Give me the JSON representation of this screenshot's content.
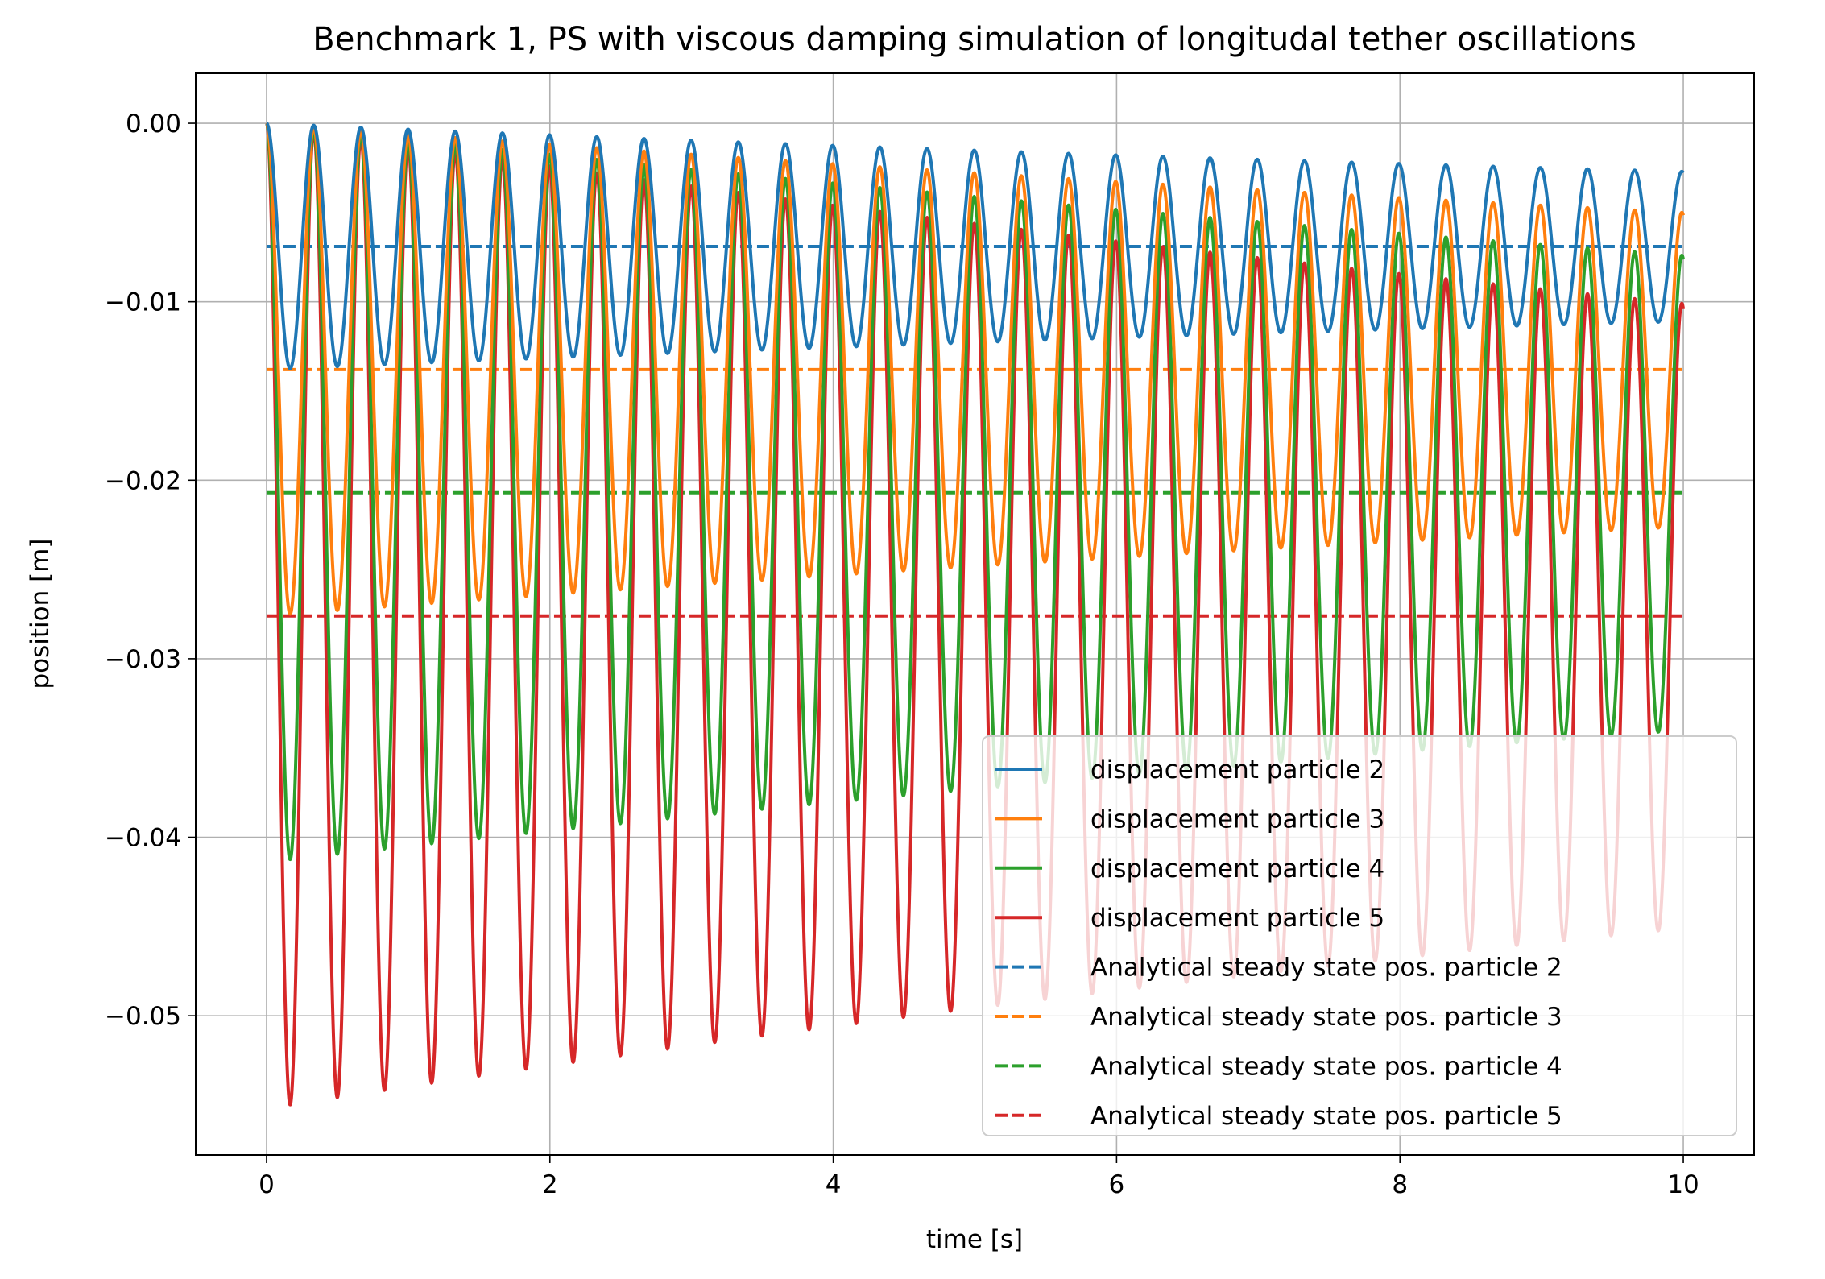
{
  "chart_data": {
    "type": "line",
    "title": "Benchmark 1, PS with viscous damping simulation of longitudal tether oscillations",
    "xlabel": "time [s]",
    "ylabel": "position [m]",
    "xlim": [
      -0.5,
      10.5
    ],
    "ylim": [
      -0.0578,
      0.0028
    ],
    "x_ticks": [
      0,
      2,
      4,
      6,
      8,
      10
    ],
    "x_tick_labels": [
      "0",
      "2",
      "4",
      "6",
      "8",
      "10"
    ],
    "y_ticks": [
      0.0,
      -0.01,
      -0.02,
      -0.03,
      -0.04,
      -0.05
    ],
    "y_tick_labels": [
      "0.00",
      "−0.01",
      "−0.02",
      "−0.03",
      "−0.04",
      "−0.05"
    ],
    "grid": true,
    "legend_position": "lower right",
    "series": [
      {
        "name": "displacement particle 2",
        "color": "#1f77b4",
        "style": "solid",
        "model": {
          "kind": "damped-oscillation",
          "x_start": 0,
          "x_end": 10,
          "steady_state": -0.0069,
          "amplitude_start": 0.0069,
          "amplitude_end": 0.0042,
          "period": 0.333
        },
        "x": [
          0,
          0.17,
          0.33,
          0.5,
          0.67,
          1.0,
          2.0,
          3.0,
          4.0,
          5.0,
          6.0,
          7.0,
          8.0,
          9.0,
          10.0
        ],
        "y": [
          0.0,
          -0.0138,
          -0.0001,
          -0.0137,
          -0.0002,
          -0.0003,
          -0.0007,
          -0.001,
          -0.0012,
          -0.0014,
          -0.0016,
          -0.0018,
          -0.0021,
          -0.0024,
          -0.0027
        ]
      },
      {
        "name": "displacement particle 3",
        "color": "#ff7f0e",
        "style": "solid",
        "model": {
          "kind": "damped-oscillation",
          "x_start": 0,
          "x_end": 10,
          "steady_state": -0.0138,
          "amplitude_start": 0.0138,
          "amplitude_end": 0.0088,
          "period": 0.333
        },
        "x": [
          0,
          0.17,
          0.33,
          0.5,
          0.67,
          1.0,
          2.0,
          3.0,
          4.0,
          5.0,
          6.0,
          7.0,
          8.0,
          9.0,
          10.0
        ],
        "y": [
          0.0,
          -0.0275,
          -0.0003,
          -0.0273,
          -0.0006,
          -0.0008,
          -0.0013,
          -0.0018,
          -0.0023,
          -0.0028,
          -0.0032,
          -0.0037,
          -0.0041,
          -0.0047,
          -0.0053
        ]
      },
      {
        "name": "displacement particle 4",
        "color": "#2ca02c",
        "style": "solid",
        "model": {
          "kind": "damped-oscillation",
          "x_start": 0,
          "x_end": 10,
          "steady_state": -0.0207,
          "amplitude_start": 0.0207,
          "amplitude_end": 0.0133,
          "period": 0.333
        },
        "x": [
          0,
          0.15,
          0.33,
          0.5,
          0.67,
          1.0,
          2.0,
          3.0,
          4.0,
          5.0,
          6.0,
          7.0,
          8.0,
          9.0,
          10.0
        ],
        "y": [
          0.0,
          -0.0414,
          -0.0004,
          -0.041,
          -0.0008,
          -0.0012,
          -0.002,
          -0.0026,
          -0.0033,
          -0.004,
          -0.0048,
          -0.0055,
          -0.0062,
          -0.007,
          -0.008
        ]
      },
      {
        "name": "displacement particle 5",
        "color": "#d62728",
        "style": "solid",
        "model": {
          "kind": "damped-oscillation",
          "x_start": 0,
          "x_end": 10,
          "steady_state": -0.0276,
          "amplitude_start": 0.0276,
          "amplitude_end": 0.0175,
          "period": 0.333
        },
        "x": [
          0,
          0.17,
          0.33,
          0.5,
          0.67,
          1.0,
          2.0,
          3.0,
          4.0,
          5.0,
          6.0,
          7.0,
          8.0,
          9.0,
          10.0
        ],
        "y": [
          0.0,
          -0.0553,
          -0.0006,
          -0.0549,
          -0.0011,
          -0.0016,
          -0.0027,
          -0.0036,
          -0.0045,
          -0.0054,
          -0.0064,
          -0.0074,
          -0.0083,
          -0.0093,
          -0.0107
        ]
      },
      {
        "name": "Analytical steady state pos. particle 2",
        "color": "#1f77b4",
        "style": "dashed",
        "x": [
          0,
          10
        ],
        "y": [
          -0.0069,
          -0.0069
        ]
      },
      {
        "name": "Analytical steady state pos. particle 3",
        "color": "#ff7f0e",
        "style": "dashed",
        "x": [
          0,
          10
        ],
        "y": [
          -0.0138,
          -0.0138
        ]
      },
      {
        "name": "Analytical steady state pos. particle 4",
        "color": "#2ca02c",
        "style": "dashed",
        "x": [
          0,
          10
        ],
        "y": [
          -0.0207,
          -0.0207
        ]
      },
      {
        "name": "Analytical steady state pos. particle 5",
        "color": "#d62728",
        "style": "dashed",
        "x": [
          0,
          10
        ],
        "y": [
          -0.0276,
          -0.0276
        ]
      }
    ]
  }
}
